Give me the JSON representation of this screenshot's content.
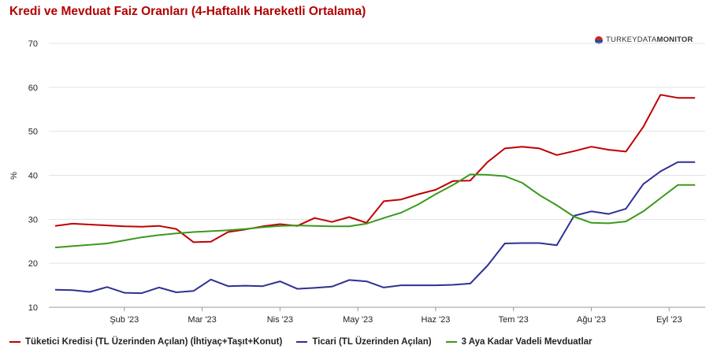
{
  "title": "Kredi ve Mevduat Faiz Oranları (4-Haftalık Hareketli Ortalama)",
  "logo": {
    "text_light": "TURKEYDATA",
    "text_bold": "MONITOR"
  },
  "chart_data": {
    "type": "line",
    "ylabel": "%",
    "ylim": [
      10,
      70
    ],
    "yticks": [
      10,
      20,
      30,
      40,
      50,
      60,
      70
    ],
    "grid": true,
    "legend_position": "bottom",
    "x_tick_labels": [
      {
        "label": "Şub '23",
        "x": 4
      },
      {
        "label": "Mar '23",
        "x": 8.5
      },
      {
        "label": "Nis '23",
        "x": 13
      },
      {
        "label": "May '23",
        "x": 17.5
      },
      {
        "label": "Haz '23",
        "x": 22
      },
      {
        "label": "Tem '23",
        "x": 26.5
      },
      {
        "label": "Ağu '23",
        "x": 31
      },
      {
        "label": "Eyl '23",
        "x": 35.5
      }
    ],
    "x": [
      0,
      1,
      2,
      3,
      4,
      5,
      6,
      7,
      8,
      9,
      10,
      11,
      12,
      13,
      14,
      15,
      16,
      17,
      18,
      19,
      20,
      21,
      22,
      23,
      24,
      25,
      26,
      27,
      28,
      29,
      30,
      31,
      32,
      33,
      34,
      35,
      36,
      37
    ],
    "series": [
      {
        "name": "Tüketici Kredisi (TL Üzerinden Açılan) (İhtiyaç+Taşıt+Konut)",
        "color": "#c00000",
        "values": [
          28.5,
          29.0,
          28.8,
          28.6,
          28.4,
          28.3,
          28.5,
          27.8,
          24.8,
          24.9,
          27.1,
          27.7,
          28.4,
          28.9,
          28.5,
          30.3,
          29.4,
          30.5,
          29.2,
          34.1,
          34.5,
          35.7,
          36.7,
          38.7,
          38.8,
          43.0,
          46.1,
          46.5,
          46.1,
          44.6,
          45.5,
          46.5,
          45.8,
          45.4,
          51.0,
          58.3,
          57.6,
          57.6
        ]
      },
      {
        "name": "Ticari (TL Üzerinden Açılan)",
        "color": "#2e3192",
        "values": [
          14.0,
          13.9,
          13.5,
          14.6,
          13.3,
          13.2,
          14.5,
          13.4,
          13.7,
          16.3,
          14.8,
          14.9,
          14.8,
          15.9,
          14.2,
          14.4,
          14.7,
          16.2,
          15.9,
          14.5,
          15.0,
          15.0,
          15.0,
          15.1,
          15.4,
          19.5,
          24.5,
          24.6,
          24.6,
          24.1,
          30.8,
          31.8,
          31.2,
          32.4,
          38.0,
          40.9,
          43.0,
          43.0
        ]
      },
      {
        "name": "3 Aya Kadar Vadeli Mevduatlar",
        "color": "#3a9a1c",
        "values": [
          23.6,
          23.9,
          24.2,
          24.5,
          25.2,
          25.9,
          26.4,
          26.8,
          27.1,
          27.3,
          27.5,
          27.8,
          28.2,
          28.5,
          28.6,
          28.5,
          28.4,
          28.4,
          29.0,
          30.3,
          31.5,
          33.4,
          35.7,
          37.8,
          40.2,
          40.1,
          39.8,
          38.3,
          35.5,
          33.2,
          30.6,
          29.2,
          29.1,
          29.5,
          31.8,
          34.8,
          37.8,
          37.8
        ]
      }
    ]
  }
}
